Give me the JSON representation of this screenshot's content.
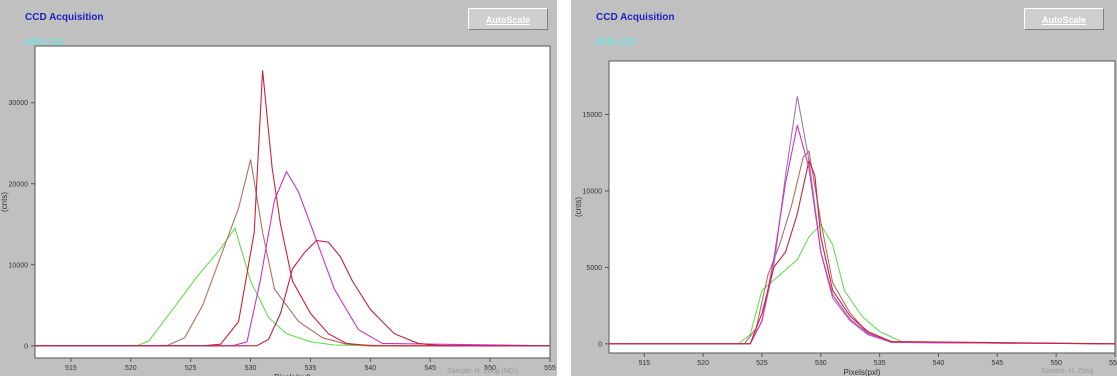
{
  "panels": [
    {
      "title": "CCD Acquisition",
      "subtitle": "ATR / CD",
      "autoscale_label": "AutoScale",
      "footer": "Sample: H. Zong (NCI)"
    },
    {
      "title": "CCD Acquisition",
      "subtitle": "ATR / CD",
      "autoscale_label": "AutoScale",
      "footer": "Sample: H. Zong"
    }
  ],
  "chart_data": [
    {
      "type": "line",
      "title": "",
      "xlabel": "Pixels(pxl)",
      "ylabel": "(cnts)",
      "xlim": [
        512,
        555
      ],
      "ylim": [
        -1500,
        37000
      ],
      "x_ticks": [
        "515",
        "520",
        "525",
        "530",
        "535",
        "540",
        "545",
        "550",
        "555"
      ],
      "y_ticks": [
        "0",
        "10000",
        "20000",
        "30000"
      ],
      "series": [
        {
          "color": "#66dd55",
          "x": [
            512,
            520.5,
            521.5,
            523.5,
            525.5,
            527.5,
            528.7,
            530,
            531.5,
            533,
            535,
            537,
            540,
            555
          ],
          "y": [
            0,
            0,
            600,
            4500,
            8500,
            12000,
            14500,
            8000,
            3500,
            1500,
            500,
            100,
            0,
            0
          ]
        },
        {
          "color": "#b07060",
          "x": [
            512,
            523,
            524.5,
            526,
            527.5,
            529,
            530,
            531,
            532,
            534,
            536,
            538,
            541,
            555
          ],
          "y": [
            0,
            0,
            1000,
            5000,
            11000,
            17000,
            23000,
            14000,
            7000,
            3000,
            1000,
            200,
            0,
            0
          ]
        },
        {
          "color": "#cc2233",
          "x": [
            512,
            526,
            527.5,
            529,
            530.3,
            531,
            531.8,
            532.5,
            533.5,
            535,
            536.5,
            538,
            540,
            555
          ],
          "y": [
            0,
            0,
            200,
            3000,
            14000,
            34000,
            22000,
            15000,
            8000,
            4000,
            1500,
            300,
            0,
            0
          ]
        },
        {
          "color": "#cc33cc",
          "x": [
            512,
            528.5,
            529.7,
            530.8,
            532,
            533,
            534,
            535.5,
            537,
            539,
            541,
            555
          ],
          "y": [
            0,
            0,
            500,
            8000,
            18000,
            21500,
            19000,
            13000,
            7000,
            2000,
            300,
            0
          ]
        },
        {
          "color": "#bb2244",
          "x": [
            512,
            530.5,
            531.5,
            532.5,
            533.5,
            534.5,
            535.5,
            536.5,
            537.5,
            538.5,
            540,
            542,
            544,
            546,
            555
          ],
          "y": [
            0,
            0,
            800,
            4000,
            9500,
            11500,
            13000,
            12800,
            11000,
            8000,
            4500,
            1500,
            300,
            0,
            0
          ]
        }
      ]
    },
    {
      "type": "line",
      "title": "",
      "xlabel": "Pixels(pxl)",
      "ylabel": "(cnts)",
      "xlim": [
        512,
        555
      ],
      "ylim": [
        -600,
        18500
      ],
      "x_ticks": [
        "515",
        "520",
        "525",
        "530",
        "535",
        "540",
        "545",
        "550",
        "555"
      ],
      "y_ticks": [
        "0",
        "5000",
        "10000",
        "15000"
      ],
      "series": [
        {
          "color": "#66dd55",
          "x": [
            512,
            523,
            524,
            525,
            526.5,
            528,
            529,
            530,
            531,
            532,
            533.5,
            535,
            537,
            555
          ],
          "y": [
            0,
            0,
            600,
            3500,
            4500,
            5500,
            7000,
            7800,
            6500,
            3500,
            1800,
            800,
            100,
            0
          ]
        },
        {
          "color": "#b07060",
          "x": [
            512,
            523.5,
            524.5,
            525.5,
            526.5,
            527.5,
            528.5,
            529,
            530,
            531,
            532.5,
            534,
            536,
            555
          ],
          "y": [
            0,
            0,
            1000,
            4500,
            6500,
            9000,
            12200,
            12600,
            8000,
            4000,
            2000,
            700,
            100,
            0
          ]
        },
        {
          "color": "#9a7ab0",
          "x": [
            512,
            524,
            525,
            526,
            527,
            528,
            529,
            530,
            531,
            532.5,
            534,
            536,
            555
          ],
          "y": [
            0,
            0,
            1500,
            5000,
            11000,
            16200,
            12000,
            6000,
            3000,
            1500,
            600,
            100,
            0
          ]
        },
        {
          "color": "#cc33cc",
          "x": [
            512,
            524,
            525,
            526,
            527,
            528,
            529,
            530,
            531,
            532.5,
            534,
            536,
            555
          ],
          "y": [
            0,
            0,
            1500,
            5500,
            10500,
            14300,
            11500,
            6000,
            3200,
            1600,
            700,
            100,
            0
          ]
        },
        {
          "color": "#cc2233",
          "x": [
            512,
            524,
            525,
            526,
            527,
            528,
            529,
            529.5,
            530,
            531,
            532.5,
            534,
            536,
            555
          ],
          "y": [
            0,
            0,
            2000,
            5000,
            6000,
            8500,
            12000,
            11000,
            7000,
            3500,
            1800,
            800,
            150,
            0
          ]
        }
      ]
    }
  ]
}
